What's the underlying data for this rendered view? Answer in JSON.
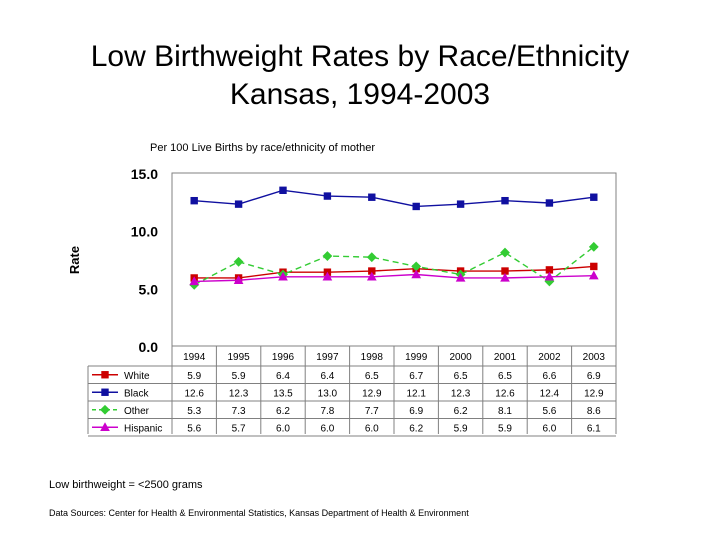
{
  "title_line1": "Low Birthweight Rates by Race/Ethnicity",
  "title_line2": "Kansas, 1994-2003",
  "subtitle": "Per 100 Live Births by race/ethnicity of mother",
  "footnote": "Low birthweight = <2500 grams",
  "source": "Data Sources:   Center for Health & Environmental Statistics, Kansas Department of Health & Environment",
  "chart_data": {
    "type": "line",
    "ylabel": "Rate",
    "xlabel": "",
    "ylim": [
      0,
      15
    ],
    "yticks": [
      "15.0",
      "10.0",
      "5.0",
      "0.0"
    ],
    "grid": false,
    "legend": "data-table-left",
    "categories": [
      "1994",
      "1995",
      "1996",
      "1997",
      "1998",
      "1999",
      "2000",
      "2001",
      "2002",
      "2003"
    ],
    "series": [
      {
        "name": "White",
        "color": "#cc0000",
        "marker": "square",
        "dash": false,
        "values": [
          5.9,
          5.9,
          6.4,
          6.4,
          6.5,
          6.7,
          6.5,
          6.5,
          6.6,
          6.9
        ],
        "labels": [
          "5.9",
          "5.9",
          "6.4",
          "6.4",
          "6.5",
          "6.7",
          "6.5",
          "6.5",
          "6.6",
          "6.9"
        ]
      },
      {
        "name": "Black",
        "color": "#1010a0",
        "marker": "square",
        "dash": false,
        "values": [
          12.6,
          12.3,
          13.5,
          13.0,
          12.9,
          12.1,
          12.3,
          12.6,
          12.4,
          12.9
        ],
        "labels": [
          "12.6",
          "12.3",
          "13.5",
          "13.0",
          "12.9",
          "12.1",
          "12.3",
          "12.6",
          "12.4",
          "12.9"
        ]
      },
      {
        "name": "Other",
        "color": "#33cc33",
        "marker": "diamond",
        "dash": true,
        "values": [
          5.3,
          7.3,
          6.2,
          7.8,
          7.7,
          6.9,
          6.2,
          8.1,
          5.6,
          8.6
        ],
        "labels": [
          "5.3",
          "7.3",
          "6.2",
          "7.8",
          "7.7",
          "6.9",
          "6.2",
          "8.1",
          "5.6",
          "8.6"
        ]
      },
      {
        "name": "Hispanic",
        "color": "#cc00cc",
        "marker": "triangle",
        "dash": false,
        "values": [
          5.6,
          5.7,
          6.0,
          6.0,
          6.0,
          6.2,
          5.9,
          5.9,
          6.0,
          6.1
        ],
        "labels": [
          "5.6",
          "5.7",
          "6.0",
          "6.0",
          "6.0",
          "6.2",
          "5.9",
          "5.9",
          "6.0",
          "6.1"
        ]
      }
    ]
  }
}
